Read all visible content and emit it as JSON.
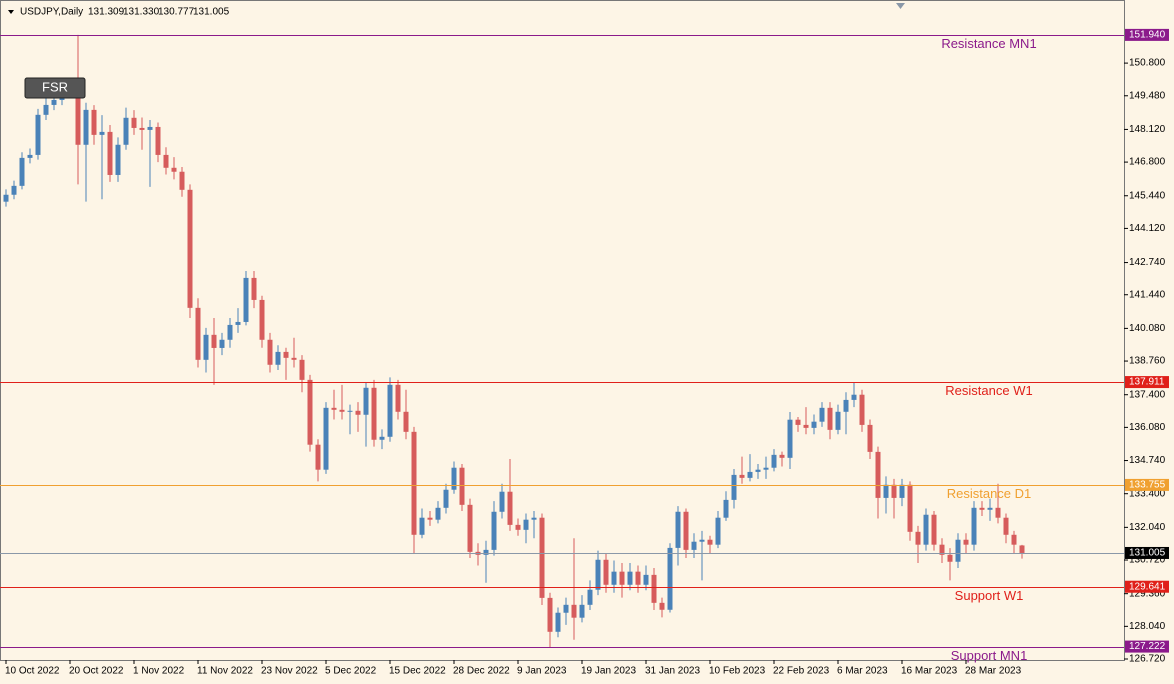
{
  "header": {
    "symbol": "USDJPY,Daily",
    "ohlc": [
      "131.309",
      "131.330",
      "130.777",
      "131.005"
    ]
  },
  "button": "FSR",
  "chart_data": {
    "type": "candlestick",
    "categories": [
      "10 Oct 2022",
      null,
      null,
      null,
      null,
      null,
      null,
      null,
      "20 Oct 2022",
      null,
      null,
      null,
      null,
      null,
      null,
      null,
      "1 Nov 2022",
      null,
      null,
      null,
      null,
      null,
      null,
      null,
      "11 Nov 2022",
      null,
      null,
      null,
      null,
      null,
      null,
      null,
      "23 Nov 2022",
      null,
      null,
      null,
      null,
      null,
      null,
      null,
      "5 Dec 2022",
      null,
      null,
      null,
      null,
      null,
      null,
      null,
      "15 Dec 2022",
      null,
      null,
      null,
      null,
      null,
      null,
      null,
      "28 Dec 2022",
      null,
      null,
      null,
      null,
      null,
      null,
      null,
      "9 Jan 2023",
      null,
      null,
      null,
      null,
      null,
      null,
      null,
      "19 Jan 2023",
      null,
      null,
      null,
      null,
      null,
      null,
      null,
      "31 Jan 2023",
      null,
      null,
      null,
      null,
      null,
      null,
      null,
      "10 Feb 2023",
      null,
      null,
      null,
      null,
      null,
      null,
      null,
      "22 Feb 2023",
      null,
      null,
      null,
      null,
      null,
      null,
      null,
      "6 Mar 2023",
      null,
      null,
      null,
      null,
      null,
      null,
      null,
      "16 Mar 2023",
      null,
      null,
      null,
      null,
      null,
      null,
      null,
      "28 Mar 2023",
      null,
      null,
      null,
      null,
      null,
      null,
      null
    ],
    "open": [
      145.2,
      145.48,
      145.84,
      146.97,
      147.09,
      148.71,
      149.11,
      149.31,
      149.64,
      149.92,
      147.5,
      148.91,
      147.9,
      148.02,
      146.28,
      147.5,
      148.59,
      148.18,
      148.1,
      148.22,
      147.09,
      146.57,
      146.41,
      145.68,
      140.91,
      138.81,
      139.82,
      139.29,
      139.62,
      140.22,
      140.34,
      142.12,
      141.23,
      139.62,
      138.61,
      139.13,
      138.89,
      138.81,
      138.0,
      135.38,
      134.37,
      136.87,
      136.79,
      136.71,
      136.75,
      136.59,
      137.68,
      135.58,
      135.7,
      137.8,
      136.71,
      135.9,
      131.74,
      132.43,
      132.35,
      132.83,
      133.56,
      134.45,
      132.95,
      131.05,
      130.93,
      131.13,
      132.67,
      133.48,
      132.14,
      131.94,
      132.35,
      132.43,
      129.19,
      127.82,
      128.59,
      128.91,
      128.39,
      128.91,
      129.52,
      130.73,
      129.72,
      130.25,
      129.72,
      130.25,
      129.72,
      130.12,
      128.99,
      128.71,
      131.21,
      132.67,
      131.13,
      131.46,
      131.54,
      131.34,
      132.43,
      133.15,
      134.16,
      134.04,
      134.28,
      134.37,
      134.45,
      134.97,
      134.85,
      136.39,
      136.18,
      136.06,
      136.31,
      136.87,
      135.98,
      136.71,
      137.19,
      137.4,
      136.18,
      135.09,
      133.23,
      133.76,
      133.23,
      133.76,
      131.86,
      131.34,
      132.55,
      131.34,
      130.93,
      130.65,
      131.54,
      131.34,
      132.83,
      132.75,
      132.83,
      132.43,
      131.74,
      131.309
    ],
    "high": [
      145.7,
      146.05,
      147.2,
      147.35,
      148.95,
      149.4,
      149.6,
      149.9,
      150.2,
      151.94,
      149.2,
      149.1,
      148.7,
      148.3,
      147.8,
      149.0,
      148.9,
      148.6,
      148.5,
      148.4,
      147.4,
      147.0,
      146.6,
      145.9,
      141.3,
      140.1,
      140.5,
      139.9,
      140.5,
      140.9,
      142.4,
      142.4,
      141.4,
      139.9,
      139.4,
      139.3,
      139.7,
      139.0,
      138.2,
      135.6,
      137.1,
      137.6,
      137.8,
      137.0,
      137.1,
      137.9,
      138.0,
      136.0,
      138.1,
      138.0,
      137.6,
      136.1,
      132.8,
      132.7,
      133.1,
      133.8,
      134.7,
      134.6,
      133.2,
      131.4,
      131.5,
      133.1,
      133.8,
      134.8,
      132.4,
      132.6,
      132.7,
      132.6,
      129.4,
      128.8,
      129.2,
      131.6,
      129.3,
      129.9,
      131.1,
      131.0,
      130.7,
      130.6,
      130.6,
      130.5,
      130.5,
      130.4,
      129.2,
      131.4,
      132.9,
      132.8,
      131.8,
      131.9,
      131.7,
      132.7,
      133.5,
      134.4,
      134.9,
      135.0,
      134.6,
      134.9,
      135.2,
      135.1,
      136.7,
      136.5,
      136.9,
      136.6,
      137.1,
      137.1,
      137.0,
      137.5,
      137.9,
      137.6,
      136.4,
      135.3,
      134.1,
      134.0,
      134.0,
      133.9,
      132.1,
      132.8,
      132.7,
      131.6,
      131.2,
      131.8,
      131.8,
      133.1,
      133.1,
      133.2,
      133.8,
      132.6,
      131.9,
      131.33
    ],
    "low": [
      145.0,
      145.3,
      145.7,
      146.75,
      146.9,
      148.5,
      148.9,
      149.1,
      149.4,
      145.9,
      145.2,
      147.5,
      145.3,
      146.0,
      146.0,
      147.3,
      147.9,
      147.3,
      145.8,
      146.8,
      146.3,
      146.1,
      145.4,
      140.5,
      138.5,
      138.3,
      137.8,
      139.0,
      139.3,
      139.9,
      140.2,
      140.9,
      139.3,
      138.3,
      138.4,
      138.0,
      138.5,
      137.5,
      135.1,
      133.9,
      134.2,
      136.4,
      136.4,
      135.8,
      135.9,
      135.3,
      135.3,
      135.2,
      135.5,
      136.4,
      135.6,
      131.0,
      131.6,
      132.1,
      132.2,
      132.6,
      133.4,
      132.7,
      130.8,
      130.5,
      129.8,
      130.9,
      132.4,
      131.9,
      131.7,
      131.4,
      131.6,
      128.9,
      127.2,
      127.6,
      128.1,
      127.5,
      128.2,
      128.7,
      129.3,
      129.4,
      129.4,
      129.2,
      129.5,
      129.4,
      129.5,
      128.7,
      128.4,
      128.6,
      130.5,
      130.8,
      130.8,
      129.9,
      131.0,
      131.2,
      132.3,
      132.8,
      133.8,
      133.9,
      134.0,
      134.0,
      134.3,
      134.5,
      134.4,
      135.9,
      135.8,
      135.8,
      136.1,
      135.6,
      135.8,
      135.8,
      136.9,
      135.9,
      134.8,
      132.4,
      132.6,
      132.4,
      132.9,
      131.5,
      130.6,
      131.1,
      131.1,
      130.6,
      129.9,
      130.4,
      131.0,
      131.1,
      132.5,
      132.3,
      132.2,
      131.4,
      131.0,
      130.777
    ],
    "close": [
      145.48,
      145.84,
      146.97,
      147.09,
      148.71,
      149.11,
      149.31,
      149.64,
      149.92,
      147.5,
      148.91,
      147.9,
      148.02,
      146.28,
      147.5,
      148.59,
      148.18,
      148.1,
      148.22,
      147.09,
      146.57,
      146.41,
      145.68,
      140.91,
      138.81,
      139.82,
      139.29,
      139.62,
      140.22,
      140.34,
      142.12,
      141.23,
      139.62,
      138.61,
      139.13,
      138.89,
      138.81,
      138.0,
      135.38,
      134.37,
      136.87,
      136.79,
      136.71,
      136.75,
      136.59,
      137.68,
      135.58,
      135.7,
      137.8,
      136.71,
      135.9,
      131.74,
      132.43,
      132.35,
      132.83,
      133.56,
      134.45,
      132.95,
      131.05,
      130.93,
      131.13,
      132.67,
      133.48,
      132.14,
      131.94,
      132.35,
      132.43,
      129.19,
      127.82,
      128.59,
      128.91,
      128.39,
      128.91,
      129.52,
      130.73,
      129.72,
      130.25,
      129.72,
      130.25,
      129.72,
      130.12,
      128.99,
      128.71,
      131.21,
      132.67,
      131.13,
      131.46,
      131.54,
      131.34,
      132.43,
      133.15,
      134.16,
      134.04,
      134.28,
      134.37,
      134.45,
      134.97,
      134.85,
      136.39,
      136.18,
      136.06,
      136.31,
      136.87,
      135.98,
      136.71,
      137.19,
      137.4,
      136.18,
      135.09,
      133.23,
      133.76,
      133.23,
      133.76,
      131.86,
      131.34,
      132.55,
      131.34,
      130.93,
      130.65,
      131.54,
      131.34,
      132.83,
      132.75,
      132.83,
      132.43,
      131.74,
      131.34,
      131.005
    ],
    "up_color": "#4a82b8",
    "down_color": "#d65c5c",
    "ylim": [
      126.68,
      153.35
    ],
    "yticks": [
      {
        "value": 150.8,
        "label": "150.800"
      },
      {
        "value": 149.48,
        "label": "149.480"
      },
      {
        "value": 148.12,
        "label": "148.120"
      },
      {
        "value": 146.8,
        "label": "146.800"
      },
      {
        "value": 145.44,
        "label": "145.440"
      },
      {
        "value": 144.12,
        "label": "144.120"
      },
      {
        "value": 142.74,
        "label": "142.740"
      },
      {
        "value": 141.44,
        "label": "141.440"
      },
      {
        "value": 140.08,
        "label": "140.080"
      },
      {
        "value": 138.76,
        "label": "138.760"
      },
      {
        "value": 137.4,
        "label": "137.400"
      },
      {
        "value": 136.08,
        "label": "136.080"
      },
      {
        "value": 134.74,
        "label": "134.740"
      },
      {
        "value": 133.4,
        "label": "133.400"
      },
      {
        "value": 132.04,
        "label": "132.040"
      },
      {
        "value": 130.72,
        "label": "130.720"
      },
      {
        "value": 129.36,
        "label": "129.360"
      },
      {
        "value": 128.04,
        "label": "128.040"
      },
      {
        "value": 126.72,
        "label": "126.720"
      }
    ],
    "levels": [
      {
        "name": "Resistance MN1",
        "value": 151.94,
        "label": "151.940",
        "color": "#8b1a8b"
      },
      {
        "name": "Resistance W1",
        "value": 137.911,
        "label": "137.911",
        "color": "#e0201a"
      },
      {
        "name": "Resistance D1",
        "value": 133.755,
        "label": "133.755",
        "color": "#f0a030"
      },
      {
        "value": 131.005,
        "label": "131.005",
        "color": "#8a98a8",
        "box": "#000000"
      },
      {
        "name": "Support W1",
        "value": 129.641,
        "label": "129.641",
        "color": "#e0201a"
      },
      {
        "name": "Support MN1",
        "value": 127.222,
        "label": "127.222",
        "color": "#8b1a8b"
      }
    ]
  }
}
